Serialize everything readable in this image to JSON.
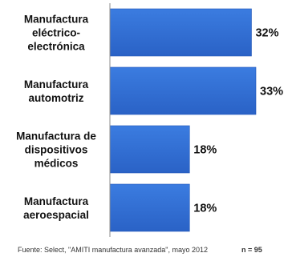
{
  "chart_data": {
    "type": "bar",
    "orientation": "horizontal",
    "categories": [
      [
        "Manufactura",
        "eléctrico-",
        "electrónica"
      ],
      [
        "Manufactura",
        "automotriz"
      ],
      [
        "Manufactura de",
        "dispositivos",
        "médicos"
      ],
      [
        "Manufactura",
        "aeroespacial"
      ]
    ],
    "values": [
      32,
      33,
      18,
      18
    ],
    "value_labels": [
      "32%",
      "33%",
      "18%",
      "18%"
    ],
    "xlim": [
      0,
      33
    ],
    "grid": false,
    "legend": "none"
  },
  "colors": {
    "bar": "#2f6fd6",
    "bar_dark": "#2458b8",
    "axis": "#8e8e8e"
  },
  "footer": {
    "source": "Fuente: Select, \"AMITI manufactura avanzada\", mayo 2012",
    "n": "n = 95"
  }
}
